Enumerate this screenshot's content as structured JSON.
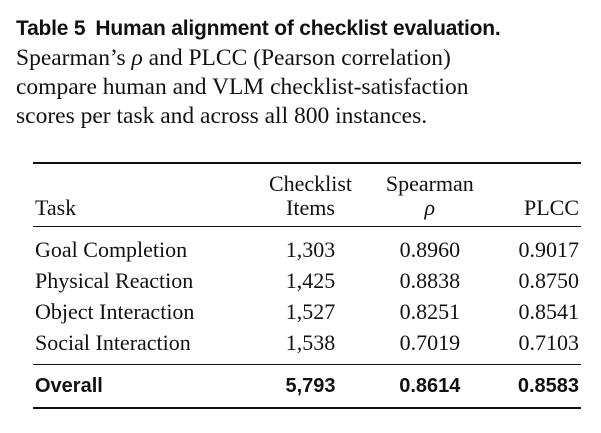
{
  "caption": {
    "label": "Table 5",
    "title": "Human alignment of checklist evaluation.",
    "body_lines": [
      "Spearman’s ρ and PLCC (Pearson correlation)",
      "compare human and VLM checklist-satisfaction",
      "scores per task and across all 800 instances."
    ]
  },
  "table": {
    "headers": {
      "task": "Task",
      "items_line1": "Checklist",
      "items_line2": "Items",
      "spearman_line1": "Spearman",
      "spearman_line2": "ρ",
      "plcc": "PLCC"
    },
    "rows": [
      {
        "task": "Goal Completion",
        "items": "1,303",
        "spearman": "0.8960",
        "plcc": "0.9017"
      },
      {
        "task": "Physical Reaction",
        "items": "1,425",
        "spearman": "0.8838",
        "plcc": "0.8750"
      },
      {
        "task": "Object Interaction",
        "items": "1,527",
        "spearman": "0.8251",
        "plcc": "0.8541"
      },
      {
        "task": "Social Interaction",
        "items": "1,538",
        "spearman": "0.7019",
        "plcc": "0.7103"
      }
    ],
    "overall": {
      "task": "Overall",
      "items": "5,793",
      "spearman": "0.8614",
      "plcc": "0.8583"
    }
  }
}
